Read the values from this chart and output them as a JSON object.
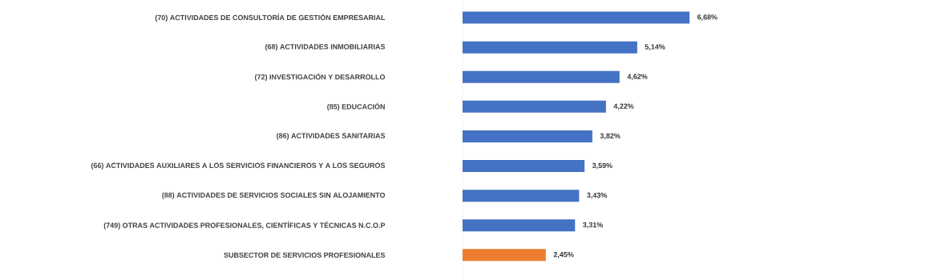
{
  "chart_data": {
    "type": "bar",
    "orientation": "horizontal",
    "categories": [
      "(70) ACTIVIDADES DE CONSULTORÍA DE GESTIÓN EMPRESARIAL",
      "(68) ACTIVIDADES INMOBILIARIAS",
      "(72) INVESTIGACIÓN Y DESARROLLO",
      "(85) EDUCACIÓN",
      "(86) ACTIVIDADES SANITARIAS",
      "(66) ACTIVIDADES AUXILIARES A LOS SERVICIOS FINANCIEROS Y A LOS SEGUROS",
      "(88) ACTIVIDADES DE SERVICIOS SOCIALES SIN ALOJAMIENTO",
      "(749) OTRAS ACTIVIDADES PROFESIONALES, CIENTÍFICAS Y TÉCNICAS N.C.O.P",
      "SUBSECTOR DE SERVICIOS PROFESIONALES"
    ],
    "values": [
      6.68,
      5.14,
      4.62,
      4.22,
      3.82,
      3.59,
      3.43,
      3.31,
      2.45
    ],
    "colors": [
      "#4472c4",
      "#4472c4",
      "#4472c4",
      "#4472c4",
      "#4472c4",
      "#4472c4",
      "#4472c4",
      "#4472c4",
      "#ed7d31"
    ],
    "value_labels": [
      "6,68%",
      "5,14%",
      "4,62%",
      "4,22%",
      "3,82%",
      "3,59%",
      "3,43%",
      "3,31%",
      "2,45%"
    ]
  }
}
